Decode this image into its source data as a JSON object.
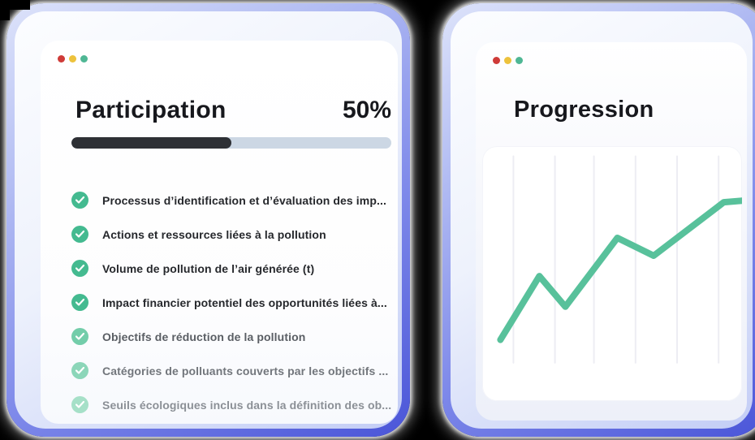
{
  "window_chrome": {
    "traffic_lights": [
      {
        "name": "close",
        "color": "#cf3b38"
      },
      {
        "name": "minimize",
        "color": "#edc23c"
      },
      {
        "name": "zoom",
        "color": "#4fb794"
      }
    ]
  },
  "participation": {
    "title": "Participation",
    "percent_label": "50%",
    "percent_value": 50,
    "progress_track_color": "#ccd7e4",
    "progress_fill_color": "#2e3035",
    "checklist": [
      {
        "label": "Processus d’identification et d’évaluation des imp...",
        "text_color": "#26282c",
        "check_color": "#44ba90"
      },
      {
        "label": "Actions et ressources liées à la pollution",
        "text_color": "#26282c",
        "check_color": "#44ba90"
      },
      {
        "label": "Volume de pollution de l’air générée (t)",
        "text_color": "#26282c",
        "check_color": "#44ba90"
      },
      {
        "label": "Impact financier potentiel des opportunités liées à...",
        "text_color": "#26282c",
        "check_color": "#44ba90"
      },
      {
        "label": "Objectifs de réduction de la pollution",
        "text_color": "#5a5e64",
        "check_color": "#73cdaa"
      },
      {
        "label": "Catégories de polluants couverts par les objectifs ...",
        "text_color": "#72767c",
        "check_color": "#8cd6b9"
      },
      {
        "label": "Seuils écologiques inclus dans la définition des ob...",
        "text_color": "#8b9096",
        "check_color": "#a6e0c8"
      }
    ]
  },
  "progression": {
    "title": "Progression",
    "chart_data": {
      "type": "line",
      "title": "Progression",
      "xlabel": "",
      "ylabel": "",
      "tick_labels": "none",
      "legend": "none",
      "grid": "vertical-only",
      "line_color": "#58c19b",
      "gridline_color": "#ededf3",
      "gridlines_x_pct": [
        12,
        28,
        43,
        59,
        75,
        91
      ],
      "gridlines_y_span_pct": [
        4,
        85
      ],
      "x_pct": [
        7,
        22,
        32,
        52,
        66,
        93,
        105
      ],
      "y_value_pct": [
        24,
        49,
        37,
        64,
        57,
        78,
        79
      ]
    }
  }
}
